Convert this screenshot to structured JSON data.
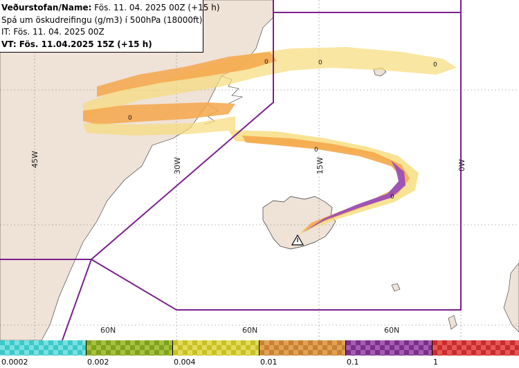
{
  "header": {
    "line1_label": "Veðurstofan/Name:",
    "line1_value": "Fös. 11. 04. 2025 00Z (+15 h)",
    "line2": "Spá um öskudreifingu (g/m3) í 500hPa (18000ft)",
    "line3": "IT: Fös. 11. 04. 2025 00Z",
    "line4": "VT: Fös. 11.04.2025 15Z (+15 h)"
  },
  "map": {
    "longitude_labels": [
      "45W",
      "30W",
      "15W",
      "0W"
    ],
    "latitude_labels": [
      "60N",
      "60N",
      "60N"
    ],
    "contour_label": "0",
    "volcano_marker": "triangle-warning",
    "colors": {
      "land": "#efe2d7",
      "sea": "#ffffff",
      "boundary": "#7a1f8c",
      "ash_light": "#f6dc7a",
      "ash_orange": "#f5a74b",
      "ash_purple": "#9b4fb5"
    }
  },
  "legend": {
    "bins": [
      {
        "color": "#3cc9c9",
        "alt": "#7ae0e0"
      },
      {
        "color": "#7fa020",
        "alt": "#a6c23c"
      },
      {
        "color": "#c9c026",
        "alt": "#e3dc5a"
      },
      {
        "color": "#c98130",
        "alt": "#e0a258"
      },
      {
        "color": "#7d2e8a",
        "alt": "#a35db1"
      },
      {
        "color": "#c92c2c",
        "alt": "#e65858"
      }
    ],
    "tick_labels": [
      "0.0002",
      "0.002",
      "0.004",
      "0.01",
      "0.1",
      "1"
    ]
  }
}
